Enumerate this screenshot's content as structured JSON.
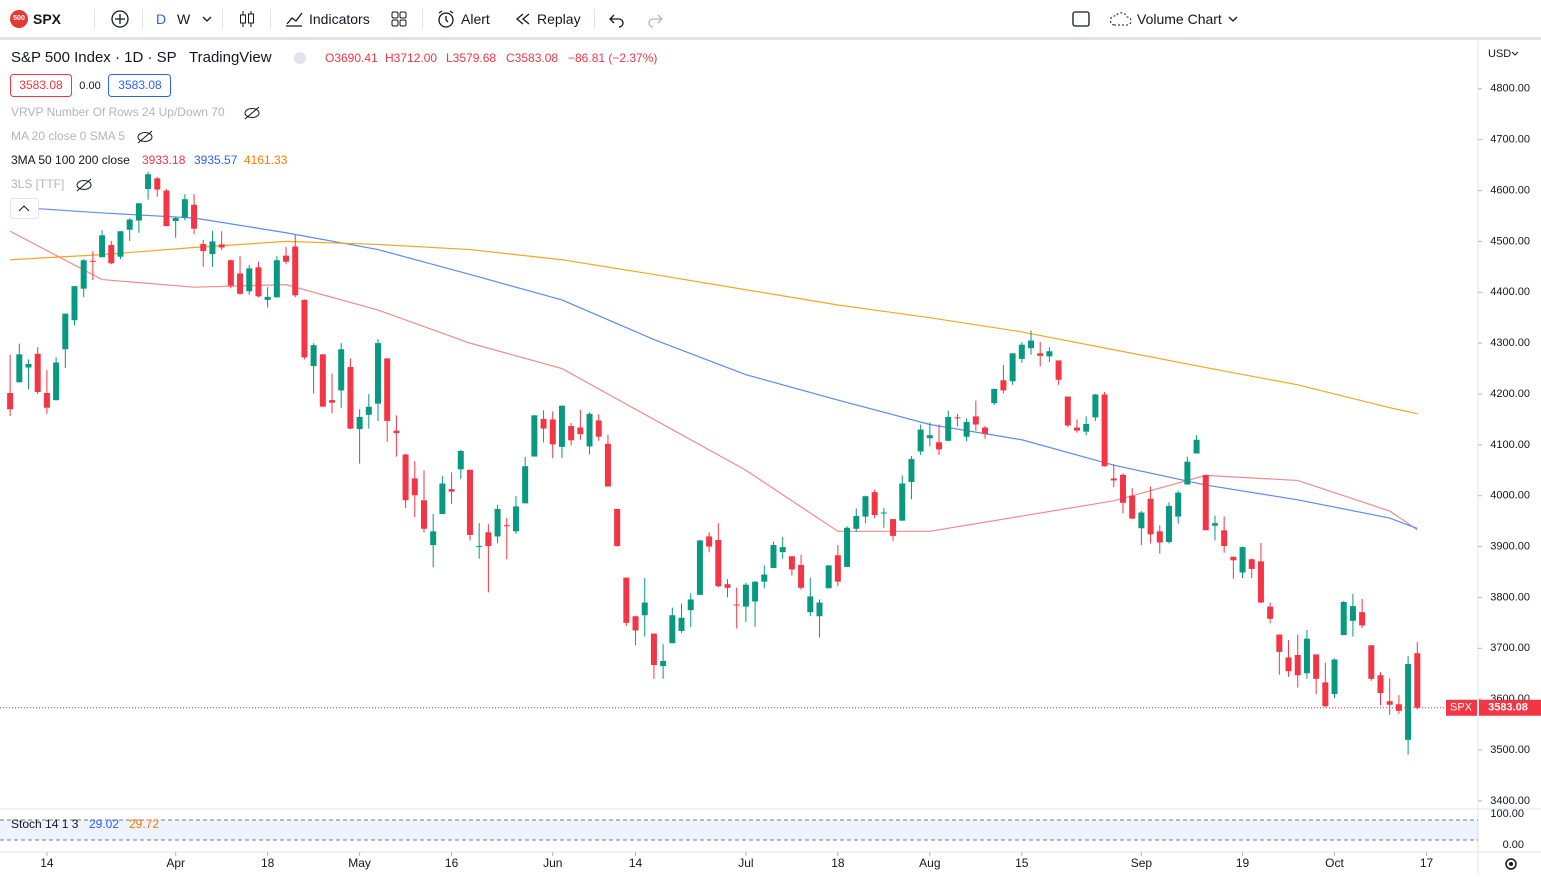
{
  "toolbar": {
    "logo": "500",
    "symbol": "SPX",
    "intervals": [
      "D",
      "W"
    ],
    "indicators": "Indicators",
    "alert": "Alert",
    "replay": "Replay",
    "layout": "Volume Chart"
  },
  "legend": {
    "title": "S&P 500 Index · 1D · SP",
    "source": "TradingView",
    "ohlc": [
      "O3690.41",
      "H3712.00",
      "L3579.68",
      "C3583.08",
      "−86.81 (−2.37%)"
    ],
    "bid": "3583.08",
    "spread": "0.00",
    "ask": "3583.08",
    "indicators": [
      "VRVP Number Of Rows 24 Up/Down 70",
      "MA 20 close 0 SMA 5",
      "3MA 50 100 200 close",
      "3LS [TTF]"
    ],
    "ma_values": [
      "3933.18",
      "3935.57",
      "4161.33"
    ]
  },
  "chart_data": {
    "type": "candlestick",
    "currency": "USD",
    "last_label": "SPX",
    "up_color": "#089981",
    "down_color": "#f23645",
    "ylim": [
      3386,
      4896
    ],
    "yticks": [
      {
        "value": 3400,
        "label": "3400.00"
      },
      {
        "value": 3500,
        "label": "3500.00"
      },
      {
        "value": 3600,
        "label": "3600.00"
      },
      {
        "value": 3700,
        "label": "3700.00"
      },
      {
        "value": 3800,
        "label": "3800.00"
      },
      {
        "value": 3900,
        "label": "3900.00"
      },
      {
        "value": 4000,
        "label": "4000.00"
      },
      {
        "value": 4100,
        "label": "4100.00"
      },
      {
        "value": 4200,
        "label": "4200.00"
      },
      {
        "value": 4300,
        "label": "4300.00"
      },
      {
        "value": 4400,
        "label": "4400.00"
      },
      {
        "value": 4500,
        "label": "4500.00"
      },
      {
        "value": 4600,
        "label": "4600.00"
      },
      {
        "value": 4700,
        "label": "4700.00"
      },
      {
        "value": 4800,
        "label": "4800.00"
      }
    ],
    "xlim": [
      -1.1,
      159.6
    ],
    "xticks": [
      {
        "value": 4,
        "label": "14"
      },
      {
        "value": 18,
        "label": "Apr"
      },
      {
        "value": 28,
        "label": "18"
      },
      {
        "value": 38,
        "label": "May"
      },
      {
        "value": 48,
        "label": "16"
      },
      {
        "value": 59,
        "label": "Jun"
      },
      {
        "value": 68,
        "label": "14"
      },
      {
        "value": 80,
        "label": "Jul"
      },
      {
        "value": 90,
        "label": "18"
      },
      {
        "value": 100,
        "label": "Aug"
      },
      {
        "value": 110,
        "label": "15"
      },
      {
        "value": 123,
        "label": "Sep"
      },
      {
        "value": 134,
        "label": "19"
      },
      {
        "value": 144,
        "label": "Oct"
      },
      {
        "value": 154,
        "label": "17"
      }
    ],
    "candles": [
      [
        4202,
        4277,
        4157,
        4170
      ],
      [
        4223,
        4299,
        4223,
        4278
      ],
      [
        4252,
        4268,
        4209,
        4259
      ],
      [
        4279,
        4292,
        4200,
        4204
      ],
      [
        4202,
        4247,
        4161,
        4173
      ],
      [
        4188,
        4272,
        4187,
        4262
      ],
      [
        4288,
        4358,
        4251,
        4358
      ],
      [
        4345,
        4412,
        4335,
        4412
      ],
      [
        4407,
        4465,
        4390,
        4463
      ],
      [
        4462,
        4481,
        4424,
        4461
      ],
      [
        4469,
        4522,
        4469,
        4512
      ],
      [
        4493,
        4501,
        4455,
        4457
      ],
      [
        4470,
        4520,
        4465,
        4520
      ],
      [
        4523,
        4546,
        4501,
        4543
      ],
      [
        4541,
        4575,
        4517,
        4575
      ],
      [
        4603,
        4637,
        4582,
        4632
      ],
      [
        4624,
        4627,
        4588,
        4602
      ],
      [
        4600,
        4603,
        4530,
        4530
      ],
      [
        4540,
        4548,
        4507,
        4546
      ],
      [
        4547,
        4593,
        4541,
        4583
      ],
      [
        4572,
        4593,
        4514,
        4525
      ],
      [
        4495,
        4503,
        4450,
        4481
      ],
      [
        4475,
        4521,
        4450,
        4500
      ],
      [
        4494,
        4520,
        4483,
        4488
      ],
      [
        4463,
        4464,
        4408,
        4413
      ],
      [
        4437,
        4471,
        4395,
        4397
      ],
      [
        4402,
        4453,
        4395,
        4447
      ],
      [
        4449,
        4460,
        4390,
        4392
      ],
      [
        4385,
        4410,
        4370,
        4391
      ],
      [
        4390,
        4471,
        4390,
        4463
      ],
      [
        4472,
        4489,
        4455,
        4460
      ],
      [
        4490,
        4513,
        4390,
        4394
      ],
      [
        4385,
        4386,
        4268,
        4272
      ],
      [
        4255,
        4300,
        4201,
        4296
      ],
      [
        4278,
        4278,
        4176,
        4175
      ],
      [
        4188,
        4240,
        4162,
        4183
      ],
      [
        4207,
        4300,
        4172,
        4288
      ],
      [
        4253,
        4270,
        4131,
        4132
      ],
      [
        4131,
        4170,
        4063,
        4155
      ],
      [
        4159,
        4200,
        4132,
        4175
      ],
      [
        4181,
        4308,
        4147,
        4300
      ],
      [
        4270,
        4270,
        4106,
        4147
      ],
      [
        4128,
        4158,
        4077,
        4123
      ],
      [
        4081,
        4082,
        3976,
        3991
      ],
      [
        4034,
        4068,
        3958,
        4001
      ],
      [
        3991,
        4050,
        3928,
        3935
      ],
      [
        3903,
        3964,
        3859,
        3930
      ],
      [
        3964,
        4039,
        3964,
        4024
      ],
      [
        4013,
        4046,
        3984,
        4008
      ],
      [
        4052,
        4090,
        4033,
        4088
      ],
      [
        4051,
        4051,
        3912,
        3923
      ],
      [
        3900,
        3946,
        3876,
        3901
      ],
      [
        3928,
        3944,
        3810,
        3901
      ],
      [
        3920,
        3982,
        3907,
        3974
      ],
      [
        3942,
        3956,
        3875,
        3941
      ],
      [
        3930,
        3999,
        3925,
        3979
      ],
      [
        3985,
        4076,
        3985,
        4058
      ],
      [
        4077,
        4158,
        4077,
        4158
      ],
      [
        4151,
        4168,
        4105,
        4132
      ],
      [
        4150,
        4166,
        4074,
        4101
      ],
      [
        4096,
        4177,
        4074,
        4177
      ],
      [
        4137,
        4143,
        4099,
        4109
      ],
      [
        4134,
        4169,
        4110,
        4121
      ],
      [
        4097,
        4164,
        4081,
        4161
      ],
      [
        4148,
        4160,
        4108,
        4116
      ],
      [
        4102,
        4120,
        4018,
        4018
      ],
      [
        3974,
        3974,
        3900,
        3901
      ],
      [
        3839,
        3839,
        3744,
        3750
      ],
      [
        3763,
        3764,
        3706,
        3735
      ],
      [
        3765,
        3838,
        3723,
        3790
      ],
      [
        3729,
        3729,
        3640,
        3667
      ],
      [
        3665,
        3708,
        3640,
        3675
      ],
      [
        3710,
        3780,
        3710,
        3765
      ],
      [
        3734,
        3788,
        3730,
        3760
      ],
      [
        3775,
        3808,
        3742,
        3796
      ],
      [
        3805,
        3913,
        3805,
        3912
      ],
      [
        3920,
        3928,
        3889,
        3900
      ],
      [
        3913,
        3946,
        3820,
        3822
      ],
      [
        3826,
        3836,
        3800,
        3819
      ],
      [
        3786,
        3819,
        3739,
        3785
      ],
      [
        3782,
        3829,
        3752,
        3825
      ],
      [
        3792,
        3832,
        3742,
        3831
      ],
      [
        3831,
        3863,
        3818,
        3845
      ],
      [
        3858,
        3910,
        3858,
        3903
      ],
      [
        3889,
        3919,
        3876,
        3899
      ],
      [
        3881,
        3881,
        3843,
        3855
      ],
      [
        3864,
        3884,
        3815,
        3819
      ],
      [
        3771,
        3839,
        3763,
        3802
      ],
      [
        3763,
        3796,
        3721,
        3790
      ],
      [
        3818,
        3864,
        3818,
        3863
      ],
      [
        3883,
        3903,
        3822,
        3831
      ],
      [
        3860,
        3940,
        3860,
        3937
      ],
      [
        3935,
        3975,
        3929,
        3960
      ],
      [
        3959,
        4000,
        3946,
        3999
      ],
      [
        4007,
        4012,
        3956,
        3962
      ],
      [
        3966,
        3976,
        3937,
        3967
      ],
      [
        3954,
        3954,
        3911,
        3921
      ],
      [
        3951,
        4040,
        3951,
        4024
      ],
      [
        4027,
        4078,
        3993,
        4072
      ],
      [
        4087,
        4140,
        4080,
        4130
      ],
      [
        4113,
        4144,
        4097,
        4119
      ],
      [
        4105,
        4140,
        4080,
        4091
      ],
      [
        4108,
        4167,
        4107,
        4155
      ],
      [
        4154,
        4161,
        4136,
        4152
      ],
      [
        4116,
        4152,
        4107,
        4145
      ],
      [
        4156,
        4187,
        4128,
        4140
      ],
      [
        4134,
        4137,
        4112,
        4122
      ],
      [
        4182,
        4211,
        4178,
        4210
      ],
      [
        4227,
        4257,
        4201,
        4207
      ],
      [
        4225,
        4280,
        4218,
        4280
      ],
      [
        4269,
        4302,
        4261,
        4297
      ],
      [
        4290,
        4325,
        4277,
        4305
      ],
      [
        4280,
        4302,
        4254,
        4275
      ],
      [
        4274,
        4292,
        4263,
        4284
      ],
      [
        4266,
        4266,
        4218,
        4228
      ],
      [
        4195,
        4195,
        4135,
        4138
      ],
      [
        4134,
        4150,
        4124,
        4128
      ],
      [
        4126,
        4156,
        4119,
        4141
      ],
      [
        4154,
        4200,
        4147,
        4199
      ],
      [
        4199,
        4204,
        4057,
        4058
      ],
      [
        4034,
        4062,
        4017,
        4030
      ],
      [
        4041,
        4044,
        3965,
        3986
      ],
      [
        4000,
        4015,
        3954,
        3955
      ],
      [
        3936,
        3970,
        3903,
        3967
      ],
      [
        3994,
        4018,
        3906,
        3924
      ],
      [
        3930,
        3942,
        3886,
        3908
      ],
      [
        3909,
        3987,
        3906,
        3980
      ],
      [
        3959,
        4010,
        3945,
        4006
      ],
      [
        4022,
        4077,
        4022,
        4067
      ],
      [
        4083,
        4119,
        4083,
        4110
      ],
      [
        4041,
        4041,
        3932,
        3932
      ],
      [
        3941,
        3961,
        3912,
        3946
      ],
      [
        3932,
        3959,
        3888,
        3901
      ],
      [
        3880,
        3880,
        3837,
        3873
      ],
      [
        3849,
        3900,
        3838,
        3899
      ],
      [
        3875,
        3877,
        3838,
        3856
      ],
      [
        3871,
        3907,
        3789,
        3790
      ],
      [
        3782,
        3790,
        3749,
        3758
      ],
      [
        3727,
        3727,
        3648,
        3693
      ],
      [
        3682,
        3716,
        3644,
        3655
      ],
      [
        3687,
        3727,
        3623,
        3647
      ],
      [
        3651,
        3736,
        3640,
        3719
      ],
      [
        3688,
        3688,
        3610,
        3640
      ],
      [
        3633,
        3672,
        3584,
        3586
      ],
      [
        3610,
        3680,
        3602,
        3678
      ],
      [
        3726,
        3793,
        3726,
        3791
      ],
      [
        3754,
        3807,
        3723,
        3783
      ],
      [
        3771,
        3797,
        3740,
        3745
      ],
      [
        3706,
        3706,
        3636,
        3640
      ],
      [
        3647,
        3653,
        3588,
        3612
      ],
      [
        3596,
        3641,
        3569,
        3589
      ],
      [
        3590,
        3608,
        3571,
        3577
      ],
      [
        3520,
        3685,
        3491,
        3669
      ],
      [
        3690.41,
        3712.0,
        3579.68,
        3583.08
      ]
    ],
    "overlays": [
      {
        "color": "#f28b8b",
        "x": [
          0,
          10,
          20,
          30,
          40,
          50,
          60,
          70,
          80,
          90,
          100,
          110,
          120,
          130,
          140,
          150,
          153
        ],
        "values": [
          4520,
          4425,
          4410,
          4415,
          4365,
          4300,
          4250,
          4150,
          4050,
          3930,
          3930,
          3960,
          3990,
          4040,
          4030,
          3970,
          3933.18
        ]
      },
      {
        "color": "#5b8def",
        "x": [
          0,
          10,
          20,
          30,
          40,
          50,
          60,
          70,
          80,
          90,
          100,
          110,
          120,
          130,
          140,
          150,
          153
        ],
        "values": [
          4568,
          4556,
          4546,
          4517,
          4484,
          4435,
          4385,
          4307,
          4238,
          4188,
          4140,
          4110,
          4060,
          4021,
          3992,
          3956,
          3935.57
        ]
      },
      {
        "color": "#f5a623",
        "x": [
          0,
          10,
          20,
          30,
          40,
          50,
          60,
          70,
          80,
          90,
          100,
          110,
          120,
          130,
          140,
          150,
          153
        ],
        "values": [
          4464,
          4474,
          4488,
          4500,
          4494,
          4484,
          4464,
          4435,
          4405,
          4375,
          4350,
          4322,
          4287,
          4252,
          4218,
          4173,
          4161.33
        ]
      }
    ]
  },
  "stoch": {
    "label": "Stoch 14 1 3",
    "values": [
      "29.02",
      "29.72"
    ],
    "yticks": [
      {
        "value": 100,
        "label": "100.00"
      },
      {
        "value": 0,
        "label": "0.00"
      }
    ]
  }
}
